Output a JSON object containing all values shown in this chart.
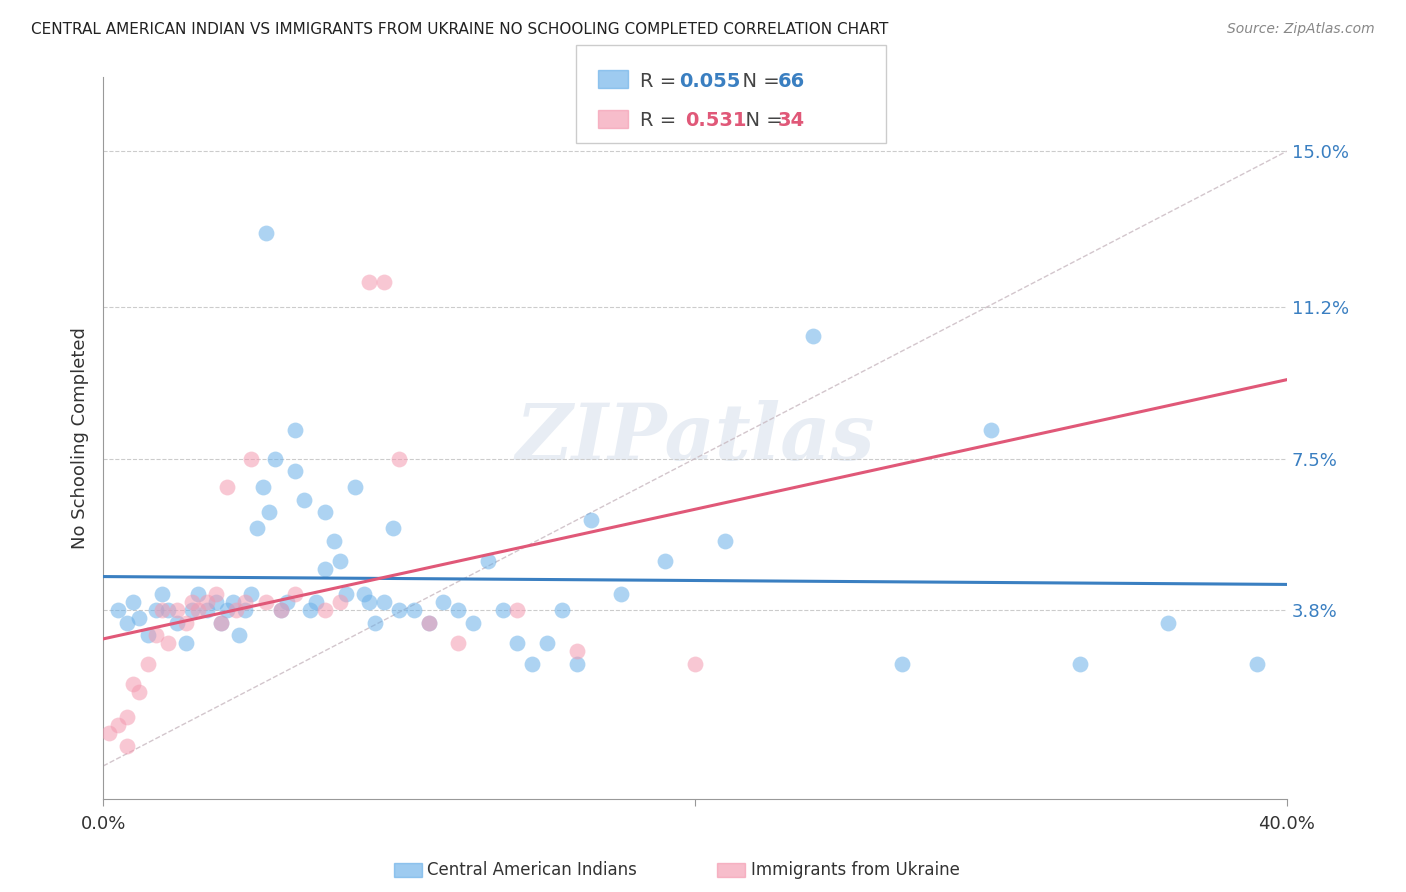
{
  "title": "CENTRAL AMERICAN INDIAN VS IMMIGRANTS FROM UKRAINE NO SCHOOLING COMPLETED CORRELATION CHART",
  "source": "Source: ZipAtlas.com",
  "ylabel": "No Schooling Completed",
  "yticks": [
    "15.0%",
    "11.2%",
    "7.5%",
    "3.8%"
  ],
  "ytick_vals": [
    0.15,
    0.112,
    0.075,
    0.038
  ],
  "xlim": [
    0.0,
    0.4
  ],
  "ylim": [
    -0.008,
    0.168
  ],
  "legend1_label": "Central American Indians",
  "legend2_label": "Immigrants from Ukraine",
  "r1": "0.055",
  "n1": "66",
  "r2": "0.531",
  "n2": "34",
  "blue_color": "#6ab0e8",
  "pink_color": "#f49ab0",
  "blue_line_color": "#3a7fc1",
  "pink_line_color": "#e05878",
  "watermark": "ZIPatlas",
  "blue_points_x": [
    0.005,
    0.008,
    0.01,
    0.012,
    0.015,
    0.018,
    0.02,
    0.022,
    0.025,
    0.028,
    0.03,
    0.032,
    0.035,
    0.038,
    0.04,
    0.042,
    0.044,
    0.046,
    0.048,
    0.05,
    0.052,
    0.054,
    0.056,
    0.058,
    0.06,
    0.062,
    0.065,
    0.068,
    0.07,
    0.072,
    0.075,
    0.078,
    0.08,
    0.082,
    0.085,
    0.088,
    0.09,
    0.092,
    0.095,
    0.098,
    0.1,
    0.105,
    0.11,
    0.115,
    0.12,
    0.125,
    0.13,
    0.135,
    0.14,
    0.145,
    0.15,
    0.155,
    0.16,
    0.165,
    0.175,
    0.19,
    0.21,
    0.24,
    0.27,
    0.3,
    0.33,
    0.36,
    0.39,
    0.055,
    0.065,
    0.075
  ],
  "blue_points_y": [
    0.038,
    0.035,
    0.04,
    0.036,
    0.032,
    0.038,
    0.042,
    0.038,
    0.035,
    0.03,
    0.038,
    0.042,
    0.038,
    0.04,
    0.035,
    0.038,
    0.04,
    0.032,
    0.038,
    0.042,
    0.058,
    0.068,
    0.062,
    0.075,
    0.038,
    0.04,
    0.082,
    0.065,
    0.038,
    0.04,
    0.062,
    0.055,
    0.05,
    0.042,
    0.068,
    0.042,
    0.04,
    0.035,
    0.04,
    0.058,
    0.038,
    0.038,
    0.035,
    0.04,
    0.038,
    0.035,
    0.05,
    0.038,
    0.03,
    0.025,
    0.03,
    0.038,
    0.025,
    0.06,
    0.042,
    0.05,
    0.055,
    0.105,
    0.025,
    0.082,
    0.025,
    0.035,
    0.025,
    0.13,
    0.072,
    0.048
  ],
  "pink_points_x": [
    0.002,
    0.005,
    0.008,
    0.01,
    0.012,
    0.015,
    0.018,
    0.02,
    0.022,
    0.025,
    0.028,
    0.03,
    0.032,
    0.035,
    0.038,
    0.04,
    0.042,
    0.045,
    0.048,
    0.05,
    0.055,
    0.06,
    0.065,
    0.075,
    0.08,
    0.09,
    0.095,
    0.1,
    0.11,
    0.12,
    0.14,
    0.16,
    0.2,
    0.008
  ],
  "pink_points_y": [
    0.008,
    0.01,
    0.012,
    0.02,
    0.018,
    0.025,
    0.032,
    0.038,
    0.03,
    0.038,
    0.035,
    0.04,
    0.038,
    0.04,
    0.042,
    0.035,
    0.068,
    0.038,
    0.04,
    0.075,
    0.04,
    0.038,
    0.042,
    0.038,
    0.04,
    0.118,
    0.118,
    0.075,
    0.035,
    0.03,
    0.038,
    0.028,
    0.025,
    0.005
  ]
}
